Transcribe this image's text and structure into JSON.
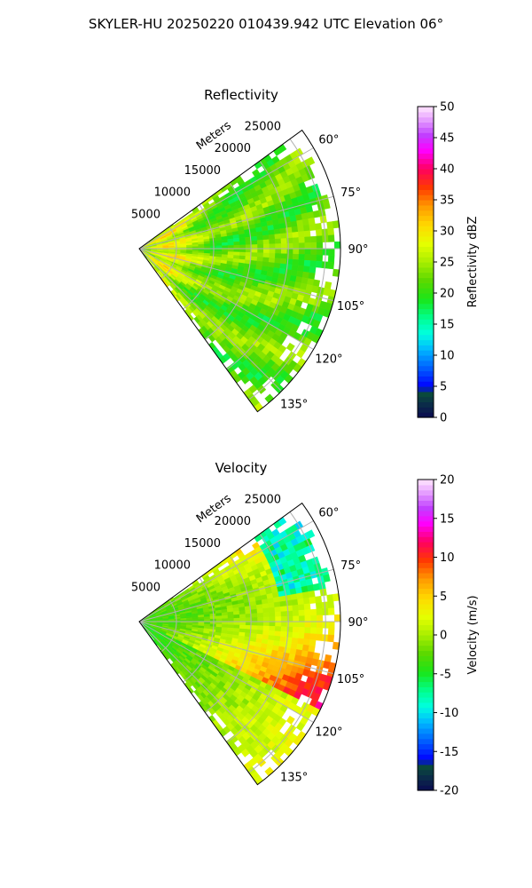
{
  "figure": {
    "title": "SKYLER-HU  20250220  010439.942 UTC Elevation 06°"
  },
  "chart_data": [
    {
      "type": "heatmap",
      "projection": "polar-sector",
      "title": "Reflectivity",
      "range_axis_label": "Meters",
      "range_ticks": [
        "5000",
        "10000",
        "15000",
        "20000",
        "25000"
      ],
      "range_tick_values": [
        5000,
        10000,
        15000,
        20000,
        25000
      ],
      "range_max": 27000,
      "azimuth_ticks": [
        "60°",
        "75°",
        "90°",
        "105°",
        "120°",
        "135°"
      ],
      "azimuth_tick_values": [
        60,
        75,
        90,
        105,
        120,
        135
      ],
      "azimuth_range": [
        54,
        144
      ],
      "grid": true,
      "colorbar": {
        "label": "Reflectivity dBZ",
        "ticks": [
          "0",
          "5",
          "10",
          "15",
          "20",
          "25",
          "30",
          "35",
          "40",
          "45",
          "50"
        ],
        "min": 0,
        "max": 50,
        "colormap": "pyart_HomeyerRainbow"
      }
    },
    {
      "type": "heatmap",
      "projection": "polar-sector",
      "title": "Velocity",
      "range_axis_label": "Meters",
      "range_ticks": [
        "5000",
        "10000",
        "15000",
        "20000",
        "25000"
      ],
      "range_tick_values": [
        5000,
        10000,
        15000,
        20000,
        25000
      ],
      "range_max": 27000,
      "azimuth_ticks": [
        "60°",
        "75°",
        "90°",
        "105°",
        "120°",
        "135°"
      ],
      "azimuth_tick_values": [
        60,
        75,
        90,
        105,
        120,
        135
      ],
      "azimuth_range": [
        54,
        144
      ],
      "grid": true,
      "colorbar": {
        "label": "Velocity (m/s)",
        "ticks": [
          "-20",
          "-15",
          "-10",
          "-5",
          "0",
          "5",
          "10",
          "15",
          "20"
        ],
        "min": -20,
        "max": 20,
        "colormap": "pyart_HomeyerRainbow"
      }
    }
  ]
}
